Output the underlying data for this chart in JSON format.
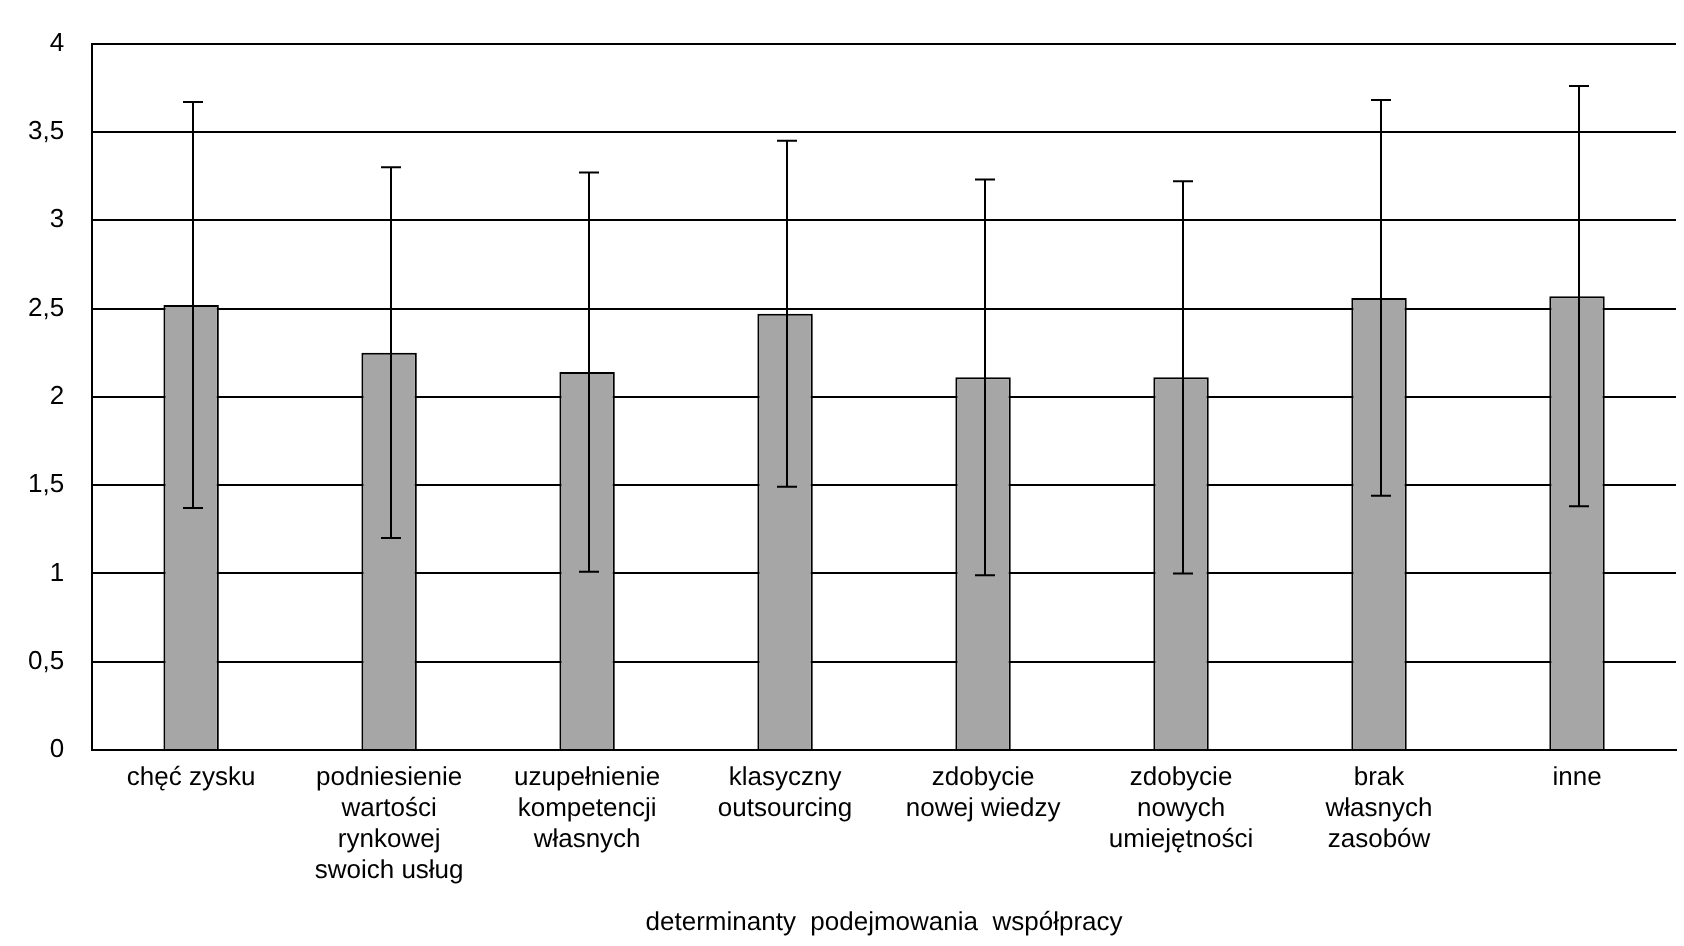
{
  "chart_data": {
    "type": "bar",
    "xlabel": "determinanty  podejmowania  współpracy",
    "categories": [
      "chęć zysku",
      "podniesienie wartości rynkowej swoich usług",
      "uzupełnienie kompetencji własnych",
      "klasyczny outsourcing",
      "zdobycie nowej wiedzy",
      "zdobycie nowych umiejętności",
      "brak własnych zasobów",
      "inne"
    ],
    "values": [
      2.52,
      2.25,
      2.14,
      2.47,
      2.11,
      2.11,
      2.56,
      2.57
    ],
    "errors": [
      1.15,
      1.05,
      1.13,
      0.98,
      1.12,
      1.11,
      1.12,
      1.19
    ],
    "color": "#a6a6a6",
    "ylim": [
      0,
      4
    ],
    "yticks": [
      0,
      {
        "value": 0.5,
        "label": "0,5"
      },
      1,
      {
        "value": 1.5,
        "label": "1,5"
      },
      2,
      {
        "value": 2.5,
        "label": "2,5"
      },
      3,
      {
        "value": 3.5,
        "label": "3,5"
      },
      4
    ],
    "grid": "y",
    "legend": false
  }
}
